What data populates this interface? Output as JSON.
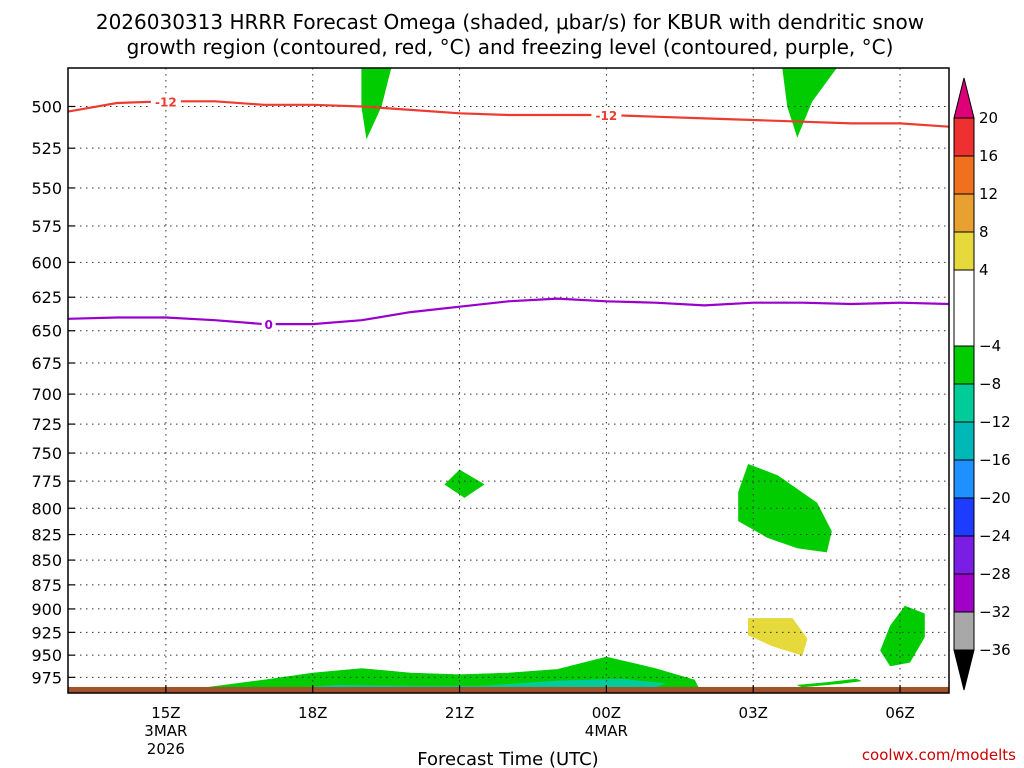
{
  "chart_data": {
    "type": "heatmap",
    "title_line1": "2026030313 HRRR Forecast Omega (shaded, μbar/s) for KBUR with dendritic snow",
    "title_line2": "growth region (contoured, red, °C) and freezing level (contoured, purple, °C)",
    "xlabel": "Forecast Time (UTC)",
    "credit": "coolwx.com/modelts",
    "x_ticks": [
      {
        "label": "15Z",
        "sub1": "3MAR",
        "sub2": "2026",
        "hour": 15
      },
      {
        "label": "18Z",
        "sub1": "",
        "sub2": "",
        "hour": 18
      },
      {
        "label": "21Z",
        "sub1": "",
        "sub2": "",
        "hour": 21
      },
      {
        "label": "00Z",
        "sub1": "4MAR",
        "sub2": "",
        "hour": 24
      },
      {
        "label": "03Z",
        "sub1": "",
        "sub2": "",
        "hour": 27
      },
      {
        "label": "06Z",
        "sub1": "",
        "sub2": "",
        "hour": 30
      }
    ],
    "xlim_hours": [
      13.0,
      31.0
    ],
    "y_ticks": [
      500,
      525,
      550,
      575,
      600,
      625,
      650,
      675,
      700,
      725,
      750,
      775,
      800,
      825,
      850,
      875,
      900,
      925,
      950,
      975
    ],
    "ylim_mb": [
      478,
      993
    ],
    "y_scale": "log-pressure",
    "grid": "dotted",
    "dendritic_contour": {
      "color": "#ee3b30",
      "label": "-12",
      "label_hours": [
        15.0,
        24.0
      ],
      "points": [
        [
          13.0,
          503
        ],
        [
          14.0,
          498
        ],
        [
          15.0,
          497
        ],
        [
          16.0,
          497
        ],
        [
          17.0,
          499
        ],
        [
          18.0,
          499
        ],
        [
          19.0,
          500
        ],
        [
          20.0,
          502
        ],
        [
          21.0,
          504
        ],
        [
          22.0,
          505
        ],
        [
          23.0,
          505
        ],
        [
          24.0,
          505
        ],
        [
          25.0,
          506
        ],
        [
          26.0,
          507
        ],
        [
          27.0,
          508
        ],
        [
          28.0,
          509
        ],
        [
          29.0,
          510
        ],
        [
          30.0,
          510
        ],
        [
          31.0,
          512
        ]
      ]
    },
    "freezing_contour": {
      "color": "#9900cc",
      "label": "0",
      "label_hours": [
        17.1
      ],
      "points": [
        [
          13.0,
          641
        ],
        [
          14.0,
          640
        ],
        [
          15.0,
          640
        ],
        [
          16.0,
          642
        ],
        [
          17.0,
          645
        ],
        [
          18.0,
          645
        ],
        [
          19.0,
          642
        ],
        [
          20.0,
          636
        ],
        [
          21.0,
          632
        ],
        [
          22.0,
          628
        ],
        [
          23.0,
          626
        ],
        [
          24.0,
          628
        ],
        [
          25.0,
          629
        ],
        [
          26.0,
          631
        ],
        [
          27.0,
          629
        ],
        [
          28.0,
          629
        ],
        [
          29.0,
          630
        ],
        [
          30.0,
          629
        ],
        [
          31.0,
          630
        ]
      ]
    },
    "shaded_regions": [
      {
        "category": "-8 to -4",
        "color": "#00cc00",
        "points": [
          [
            19.0,
            478
          ],
          [
            19.6,
            478
          ],
          [
            19.4,
            500
          ],
          [
            19.1,
            519
          ],
          [
            19.0,
            500
          ]
        ]
      },
      {
        "category": "-8 to -4",
        "color": "#00cc00",
        "points": [
          [
            27.6,
            478
          ],
          [
            28.7,
            478
          ],
          [
            28.2,
            497
          ],
          [
            27.9,
            518
          ],
          [
            27.7,
            500
          ]
        ]
      },
      {
        "category": "-8 to -4",
        "color": "#00cc00",
        "points": [
          [
            21.0,
            765
          ],
          [
            21.5,
            778
          ],
          [
            21.1,
            790
          ],
          [
            20.7,
            778
          ]
        ]
      },
      {
        "category": "-8 to -4",
        "color": "#00cc00",
        "points": [
          [
            26.9,
            760
          ],
          [
            27.5,
            770
          ],
          [
            28.3,
            795
          ],
          [
            28.6,
            822
          ],
          [
            28.5,
            842
          ],
          [
            27.9,
            838
          ],
          [
            27.3,
            828
          ],
          [
            26.7,
            812
          ],
          [
            26.7,
            785
          ]
        ]
      },
      {
        "category": "4 to 8",
        "color": "#e6d93c",
        "points": [
          [
            26.9,
            910
          ],
          [
            27.8,
            910
          ],
          [
            28.1,
            932
          ],
          [
            28.0,
            950
          ],
          [
            27.4,
            940
          ],
          [
            26.9,
            928
          ]
        ]
      },
      {
        "category": "-8 to -4",
        "color": "#00cc00",
        "points": [
          [
            30.1,
            897
          ],
          [
            30.5,
            905
          ],
          [
            30.5,
            930
          ],
          [
            30.2,
            958
          ],
          [
            29.8,
            962
          ],
          [
            29.6,
            945
          ],
          [
            29.8,
            918
          ]
        ]
      },
      {
        "category": "-8 to -4",
        "color": "#00cc00",
        "points": [
          [
            27.9,
            984
          ],
          [
            28.5,
            981
          ],
          [
            29.1,
            977
          ],
          [
            29.2,
            979
          ],
          [
            28.8,
            982
          ],
          [
            28.0,
            986
          ]
        ]
      },
      {
        "category": "-8 to -4",
        "color": "#00cc00",
        "points": [
          [
            15.0,
            993
          ],
          [
            15.9,
            986
          ],
          [
            17.0,
            978
          ],
          [
            18.0,
            970
          ],
          [
            19.0,
            965
          ],
          [
            20.0,
            970
          ],
          [
            21.0,
            972
          ],
          [
            22.0,
            970
          ],
          [
            23.0,
            966
          ],
          [
            24.0,
            952
          ],
          [
            25.0,
            965
          ],
          [
            25.8,
            978
          ],
          [
            25.9,
            989
          ],
          [
            24.5,
            993
          ]
        ]
      },
      {
        "category": "-12 to -8",
        "color": "#00cc99",
        "points": [
          [
            17.0,
            990
          ],
          [
            18.5,
            984
          ],
          [
            20.0,
            985
          ],
          [
            21.5,
            985
          ],
          [
            23.0,
            979
          ],
          [
            24.3,
            977
          ],
          [
            25.2,
            982
          ],
          [
            24.8,
            990
          ],
          [
            22.0,
            993
          ],
          [
            18.0,
            993
          ]
        ]
      }
    ],
    "terrain_band": {
      "color": "#a0522d",
      "top_mb": 986
    },
    "colorbar": {
      "labels": [
        "20",
        "16",
        "12",
        "8",
        "4",
        "−4",
        "−8",
        "−12",
        "−16",
        "−20",
        "−24",
        "−28",
        "−32",
        "−36"
      ],
      "segments": [
        {
          "from": 16,
          "to": 20,
          "color": "#ee3030"
        },
        {
          "from": 12,
          "to": 16,
          "color": "#f07020"
        },
        {
          "from": 8,
          "to": 12,
          "color": "#e8a030"
        },
        {
          "from": 4,
          "to": 8,
          "color": "#e6d93c"
        },
        {
          "from": -4,
          "to": 4,
          "color": "#ffffff"
        },
        {
          "from": -8,
          "to": -4,
          "color": "#00cc00"
        },
        {
          "from": -12,
          "to": -8,
          "color": "#00cc99"
        },
        {
          "from": -16,
          "to": -12,
          "color": "#00b8b8"
        },
        {
          "from": -20,
          "to": -16,
          "color": "#1e90ff"
        },
        {
          "from": -24,
          "to": -20,
          "color": "#1e3cff"
        },
        {
          "from": -28,
          "to": -24,
          "color": "#7a1ee6"
        },
        {
          "from": -32,
          "to": -28,
          "color": "#a000c8"
        },
        {
          "from": -36,
          "to": -32,
          "color": "#a8a8a8"
        }
      ],
      "top_arrow_color": "#dd0077",
      "bottom_arrow_color": "#000000"
    }
  }
}
